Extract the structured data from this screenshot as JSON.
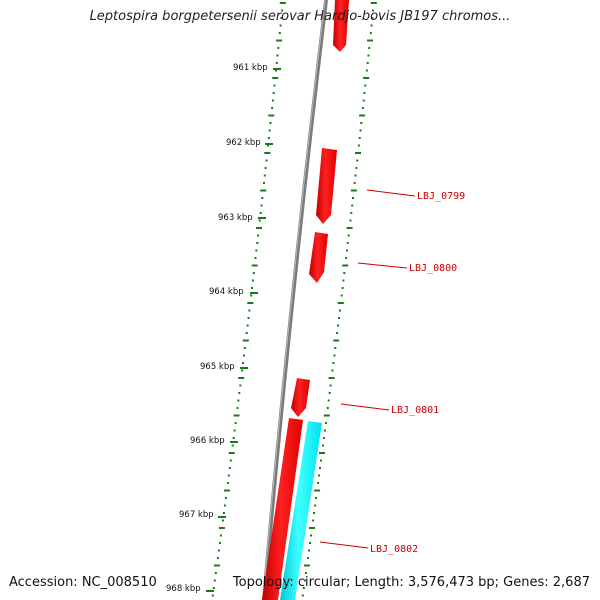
{
  "title": "Leptospira borgpetersenii serovar Hardjo-bovis JB197 chromos...",
  "footer": {
    "accession": "Accession: NC_008510",
    "topology": "Topology: circular; Length: 3,576,473 bp; Genes: 2,687"
  },
  "colors": {
    "backbone": "#808080",
    "forward_gene": "#ff0000",
    "reverse_gene": "#00ffff",
    "tick": "#1a7a1a",
    "gene_label": "#cc0000"
  },
  "kbp_labels": [
    "961 kbp",
    "962 kbp",
    "963 kbp",
    "964 kbp",
    "965 kbp",
    "966 kbp",
    "967 kbp",
    "968 kbp"
  ],
  "gene_labels": [
    "LBJ_0799",
    "LBJ_0800",
    "LBJ_0801",
    "LBJ_0802"
  ]
}
